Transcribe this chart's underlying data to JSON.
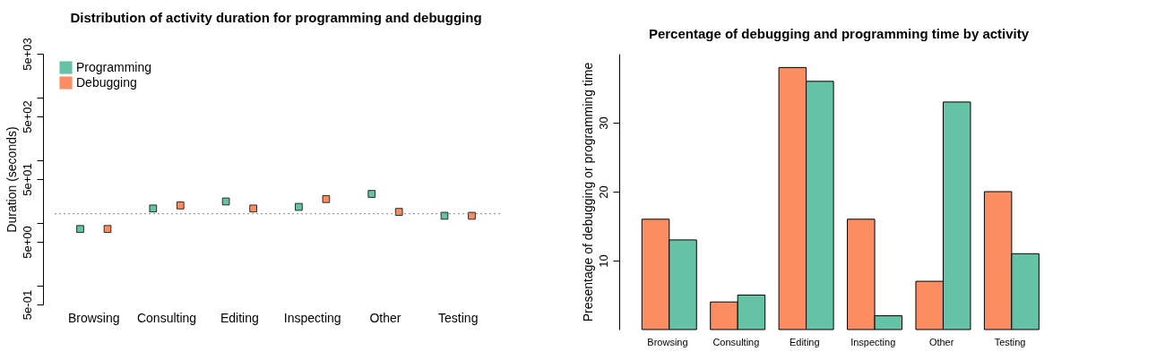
{
  "chart_data": [
    {
      "type": "scatter",
      "title": "Distribution of activity duration for programming and debugging",
      "ylabel": "Duration (seconds)",
      "categories": [
        "Browsing",
        "Consulting",
        "Editing",
        "Inspecting",
        "Other",
        "Testing"
      ],
      "series": [
        {
          "name": "Programming",
          "color": "#66c2a5",
          "values": [
            8,
            17,
            22,
            18,
            29,
            13
          ]
        },
        {
          "name": "Debugging",
          "color": "#fc8d62",
          "values": [
            8,
            19,
            17,
            24,
            15,
            13
          ]
        }
      ],
      "marker": "square",
      "log": true,
      "ylim": [
        0.5,
        5000
      ],
      "yticks": [
        {
          "value": 0.5,
          "label": "5e-01"
        },
        {
          "value": 1,
          "label": null
        },
        {
          "value": 5,
          "label": "5e+00"
        },
        {
          "value": 10,
          "label": null
        },
        {
          "value": 50,
          "label": "5e+01"
        },
        {
          "value": 100,
          "label": null
        },
        {
          "value": 500,
          "label": "5e+02"
        },
        {
          "value": 1000,
          "label": null
        },
        {
          "value": 5000,
          "label": "5e+03"
        }
      ],
      "ref_lines": [
        {
          "axis": "y",
          "value": 14,
          "color": "#888888",
          "line_style": "dotted"
        }
      ],
      "legend": "top left",
      "grid": false
    },
    {
      "type": "bar",
      "title": "Percentage of debugging and programming time by activity",
      "ylabel": "Presentage of debugging or programming time",
      "categories": [
        "Browsing",
        "Consulting",
        "Editing",
        "Inspecting",
        "Other",
        "Testing"
      ],
      "series": [
        {
          "color": "#fc8d62",
          "values": [
            16,
            4,
            38,
            16,
            7,
            20
          ]
        },
        {
          "color": "#66c2a5",
          "values": [
            13,
            5,
            36,
            2,
            33,
            11
          ]
        }
      ],
      "ylim": [
        0,
        40
      ],
      "yticks": [
        10,
        20,
        30
      ],
      "grid": false,
      "legend": false
    }
  ]
}
